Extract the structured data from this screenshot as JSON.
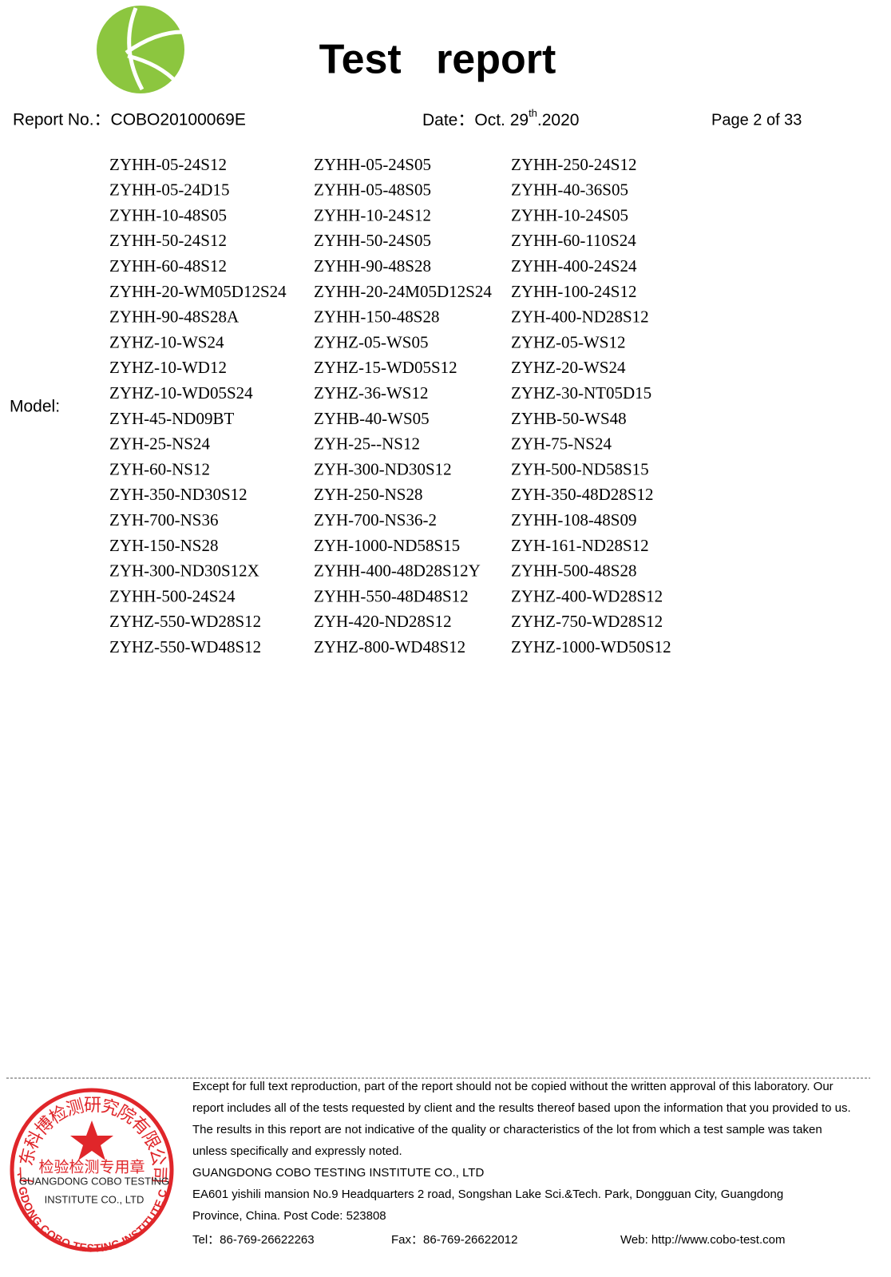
{
  "header": {
    "title": "Test   report",
    "report_no": "Report No.：COBO20100069E",
    "date": "Date：Oct. 29",
    "date_sup": "th",
    "date_year": ".2020",
    "page": "Page 2 of 33"
  },
  "model_label": "Model:",
  "models": [
    [
      "ZYHH-05-24S12",
      "ZYHH-05-24S05",
      "ZYHH-250-24S12"
    ],
    [
      "ZYHH-05-24D15",
      "ZYHH-05-48S05",
      "ZYHH-40-36S05"
    ],
    [
      "ZYHH-10-48S05",
      "ZYHH-10-24S12",
      "ZYHH-10-24S05"
    ],
    [
      "ZYHH-50-24S12",
      "ZYHH-50-24S05",
      "ZYHH-60-110S24"
    ],
    [
      "ZYHH-60-48S12",
      "ZYHH-90-48S28",
      "ZYHH-400-24S24"
    ],
    [
      "ZYHH-20-WM05D12S24",
      "ZYHH-20-24M05D12S24",
      "ZYHH-100-24S12"
    ],
    [
      "ZYHH-90-48S28A",
      "ZYHH-150-48S28",
      "ZYH-400-ND28S12"
    ],
    [
      "ZYHZ-10-WS24",
      "ZYHZ-05-WS05",
      "ZYHZ-05-WS12"
    ],
    [
      "ZYHZ-10-WD12",
      "ZYHZ-15-WD05S12",
      "ZYHZ-20-WS24"
    ],
    [
      "ZYHZ-10-WD05S24",
      "ZYHZ-36-WS12",
      "ZYHZ-30-NT05D15"
    ],
    [
      "ZYH-45-ND09BT",
      "ZYHB-40-WS05",
      "ZYHB-50-WS48"
    ],
    [
      "ZYH-25-NS24",
      "ZYH-25--NS12",
      "ZYH-75-NS24"
    ],
    [
      "ZYH-60-NS12",
      "ZYH-300-ND30S12",
      "ZYH-500-ND58S15"
    ],
    [
      "ZYH-350-ND30S12",
      "ZYH-250-NS28",
      "ZYH-350-48D28S12"
    ],
    [
      "ZYH-700-NS36",
      "ZYH-700-NS36-2",
      "ZYHH-108-48S09"
    ],
    [
      "ZYH-150-NS28",
      "ZYH-1000-ND58S15",
      "ZYH-161-ND28S12"
    ],
    [
      "ZYH-300-ND30S12X",
      "ZYHH-400-48D28S12Y",
      "ZYHH-500-48S28"
    ],
    [
      "ZYHH-500-24S24",
      "ZYHH-550-48D48S12",
      "ZYHZ-400-WD28S12"
    ],
    [
      "ZYHZ-550-WD28S12",
      "ZYH-420-ND28S12",
      "ZYHZ-750-WD28S12"
    ],
    [
      "ZYHZ-550-WD48S12",
      "ZYHZ-800-WD48S12",
      "ZYHZ-1000-WD50S12"
    ]
  ],
  "footer": {
    "lines": [
      "Except for full text reproduction, part of the report should not be copied without the written approval of this laboratory. Our",
      "report includes all of the tests requested by client and the results thereof based upon the information that you provided to us.",
      "The results in this report are not indicative of the quality or characteristics of the lot from which a test sample was taken",
      "unless specifically and expressly noted.",
      "GUANGDONG COBO TESTING INSTITUTE CO., LTD",
      "EA601 yishili mansion No.9 Headquarters 2 road, Songshan Lake Sci.&Tech. Park, Dongguan City, Guangdong",
      "Province, China. Post Code: 523808"
    ],
    "tel": "Tel：86-769-26622263",
    "fax": "Fax：86-769-26622012",
    "web": "Web: http://www.cobo-test.com"
  },
  "stamp": {
    "ring_top": "广东科博检测研究院有限公司",
    "center": "检验检测专用章",
    "line1": "GUANGDONG COBO TESTING",
    "line2": "INSTITUTE CO., LTD",
    "ring_bottom": "GUANGDONG COBO TESTING INSTITUTE CO.,LTD"
  }
}
